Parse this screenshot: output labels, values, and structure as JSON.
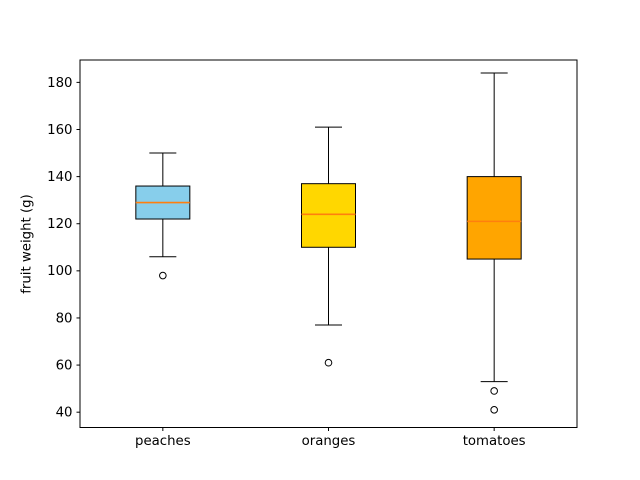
{
  "chart_data": {
    "type": "boxplot",
    "title": "",
    "xlabel": "",
    "ylabel": "fruit weight (g)",
    "categories": [
      "peaches",
      "oranges",
      "tomatoes"
    ],
    "yticks": [
      40,
      60,
      80,
      100,
      120,
      140,
      160,
      180
    ],
    "ylim": [
      33.5,
      189.5
    ],
    "grid": false,
    "legend": "none",
    "outlier_marker": "open-circle",
    "median_color": "#ff7f0e",
    "edge_color": "#000000",
    "background_color": "#ffffff",
    "series": [
      {
        "name": "peaches",
        "whisker_low": 106,
        "q1": 122,
        "median": 129,
        "q3": 136,
        "whisker_high": 150,
        "outliers": [
          98
        ],
        "fill_color": "#87CEEB"
      },
      {
        "name": "oranges",
        "whisker_low": 77,
        "q1": 110,
        "median": 124,
        "q3": 137,
        "whisker_high": 161,
        "outliers": [
          61
        ],
        "fill_color": "#FFD700"
      },
      {
        "name": "tomatoes",
        "whisker_low": 53,
        "q1": 105,
        "median": 121,
        "q3": 140,
        "whisker_high": 184,
        "outliers": [
          49,
          41
        ],
        "fill_color": "#FFA500"
      }
    ]
  }
}
